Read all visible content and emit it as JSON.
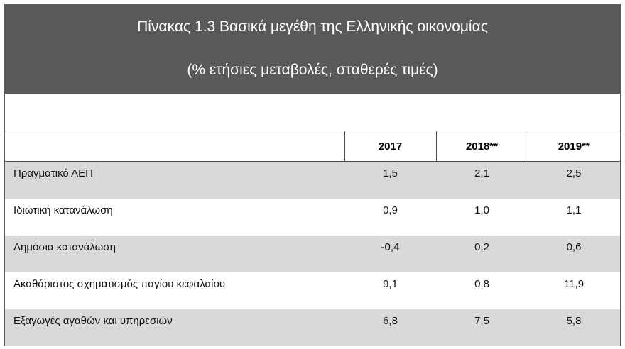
{
  "title": {
    "line1": "Πίνακας 1.3 Βασικά μεγέθη της Ελληνικής οικονομίας",
    "line2": "(% ετήσιες μεταβολές, σταθερές τιμές)"
  },
  "table": {
    "columns": [
      "",
      "2017",
      "2018**",
      "2019**"
    ],
    "rows": [
      {
        "label": "Πραγματικό ΑΕΠ",
        "values": [
          "1,5",
          "2,1",
          "2,5"
        ]
      },
      {
        "label": "Ιδιωτική κατανάλωση",
        "values": [
          "0,9",
          "1,0",
          "1,1"
        ]
      },
      {
        "label": "Δημόσια κατανάλωση",
        "values": [
          "-0,4",
          "0,2",
          "0,6"
        ]
      },
      {
        "label": "Ακαθάριστος σχηματισμός παγίου κεφαλαίου",
        "values": [
          "9,1",
          "0,8",
          "11,9"
        ]
      },
      {
        "label": "Εξαγωγές αγαθών και υπηρεσιών",
        "values": [
          "6,8",
          "7,5",
          "5,8"
        ]
      }
    ]
  },
  "colors": {
    "header_bg": "#595959",
    "row_shade": "#d9d9d9"
  }
}
